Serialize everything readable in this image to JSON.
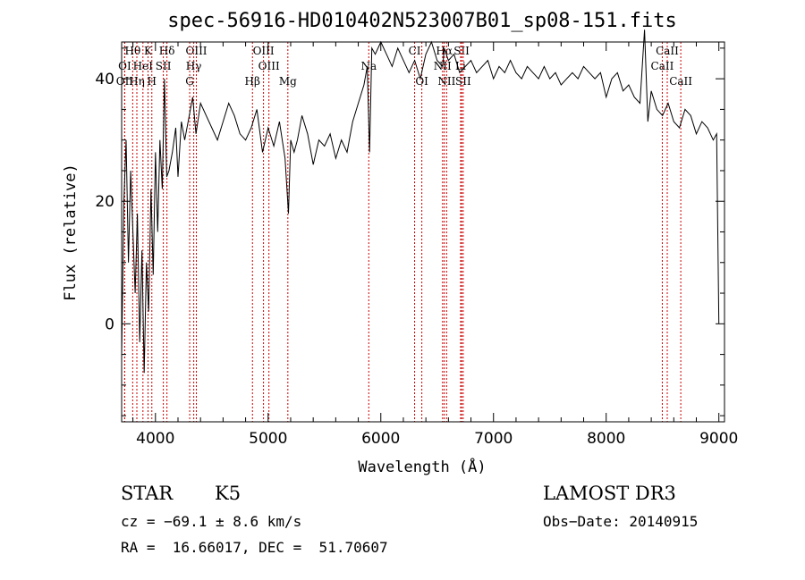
{
  "chart_data": {
    "type": "line",
    "title": "spec-56916-HD010402N523007B01_sp08-151.fits",
    "xlabel": "Wavelength (Å)",
    "ylabel": "Flux (relative)",
    "xlim": [
      3700,
      9050
    ],
    "ylim": [
      -16,
      46
    ],
    "xticks": [
      4000,
      5000,
      6000,
      7000,
      8000,
      9000
    ],
    "yticks": [
      0,
      20,
      40
    ],
    "series": [
      {
        "name": "flux",
        "x": [
          3700,
          3720,
          3740,
          3760,
          3780,
          3800,
          3820,
          3840,
          3860,
          3880,
          3900,
          3920,
          3940,
          3960,
          3980,
          4000,
          4020,
          4040,
          4060,
          4080,
          4100,
          4120,
          4150,
          4180,
          4200,
          4230,
          4260,
          4300,
          4330,
          4360,
          4400,
          4450,
          4500,
          4550,
          4600,
          4650,
          4700,
          4750,
          4800,
          4850,
          4900,
          4950,
          5000,
          5050,
          5100,
          5150,
          5180,
          5200,
          5230,
          5260,
          5300,
          5350,
          5400,
          5450,
          5500,
          5550,
          5600,
          5650,
          5700,
          5750,
          5800,
          5850,
          5880,
          5900,
          5920,
          5950,
          6000,
          6050,
          6100,
          6150,
          6200,
          6250,
          6300,
          6350,
          6400,
          6450,
          6500,
          6550,
          6563,
          6600,
          6650,
          6700,
          6750,
          6800,
          6850,
          6900,
          6950,
          7000,
          7050,
          7100,
          7150,
          7200,
          7250,
          7300,
          7350,
          7400,
          7450,
          7500,
          7550,
          7600,
          7650,
          7700,
          7750,
          7800,
          7850,
          7900,
          7950,
          8000,
          8050,
          8100,
          8150,
          8200,
          8250,
          8300,
          8340,
          8370,
          8400,
          8450,
          8500,
          8550,
          8600,
          8650,
          8700,
          8750,
          8800,
          8850,
          8900,
          8950,
          8980,
          9000
        ],
        "y": [
          -5,
          20,
          30,
          10,
          25,
          15,
          5,
          18,
          -3,
          12,
          -8,
          10,
          2,
          22,
          8,
          28,
          15,
          30,
          22,
          40,
          24,
          25,
          28,
          32,
          24,
          33,
          30,
          34,
          37,
          31,
          36,
          34,
          32,
          30,
          33,
          36,
          34,
          31,
          30,
          32,
          35,
          28,
          32,
          29,
          33,
          27,
          18,
          30,
          28,
          30,
          34,
          31,
          26,
          30,
          29,
          31,
          27,
          30,
          28,
          33,
          36,
          39,
          42,
          28,
          45,
          44,
          46,
          44,
          42,
          45,
          43,
          41,
          43,
          40,
          44,
          46,
          43,
          42,
          45,
          43,
          44,
          41,
          42,
          43,
          41,
          42,
          43,
          40,
          42,
          41,
          43,
          41,
          40,
          42,
          41,
          40,
          42,
          40,
          41,
          39,
          40,
          41,
          40,
          42,
          41,
          40,
          41,
          37,
          40,
          41,
          38,
          39,
          37,
          36,
          48,
          33,
          38,
          35,
          34,
          36,
          33,
          32,
          35,
          34,
          31,
          33,
          32,
          30,
          31,
          0
        ]
      }
    ],
    "emission_lines": [
      {
        "label": "Hθ",
        "wave": 3798,
        "row": 0
      },
      {
        "label": "K",
        "wave": 3934,
        "row": 0
      },
      {
        "label": "Hδ",
        "wave": 4102,
        "row": 0
      },
      {
        "label": "OIII",
        "wave": 4363,
        "row": 0
      },
      {
        "label": "OIII",
        "wave": 4959,
        "row": 0
      },
      {
        "label": "CI",
        "wave": 6300,
        "row": 0
      },
      {
        "label": "Hα",
        "wave": 6563,
        "row": 0
      },
      {
        "label": "SII",
        "wave": 6717,
        "row": 0
      },
      {
        "label": "CaII",
        "wave": 8542,
        "row": 0
      },
      {
        "label": "OI",
        "wave": 3727,
        "row": 1
      },
      {
        "label": "HeI",
        "wave": 3889,
        "row": 1
      },
      {
        "label": "SII",
        "wave": 4070,
        "row": 1
      },
      {
        "label": "Hγ",
        "wave": 4340,
        "row": 1
      },
      {
        "label": "OIII",
        "wave": 5007,
        "row": 1
      },
      {
        "label": "Na",
        "wave": 5893,
        "row": 1
      },
      {
        "label": "NII",
        "wave": 6548,
        "row": 1
      },
      {
        "label": "Li",
        "wave": 6708,
        "row": 1
      },
      {
        "label": "CaII",
        "wave": 8498,
        "row": 1
      },
      {
        "label": "OII",
        "wave": 3727,
        "row": 2
      },
      {
        "label": "Hη",
        "wave": 3835,
        "row": 2
      },
      {
        "label": "H",
        "wave": 3968,
        "row": 2
      },
      {
        "label": "G",
        "wave": 4304,
        "row": 2
      },
      {
        "label": "Hβ",
        "wave": 4861,
        "row": 2
      },
      {
        "label": "Mg",
        "wave": 5175,
        "row": 2
      },
      {
        "label": "OI",
        "wave": 6364,
        "row": 2
      },
      {
        "label": "NII",
        "wave": 6584,
        "row": 2
      },
      {
        "label": "SII",
        "wave": 6731,
        "row": 2
      },
      {
        "label": "CaII",
        "wave": 8662,
        "row": 2
      }
    ]
  },
  "footer": {
    "class_type": "STAR",
    "subclass": "K5",
    "survey": "LAMOST DR3",
    "cz": "cz = −69.1 ± 8.6 km/s",
    "obs_date": "Obs−Date: 20140915",
    "coords": "RA =  16.66017, DEC =  51.70607"
  },
  "colors": {
    "line": "#000000",
    "marker": "#cc0000",
    "axis": "#000000"
  }
}
